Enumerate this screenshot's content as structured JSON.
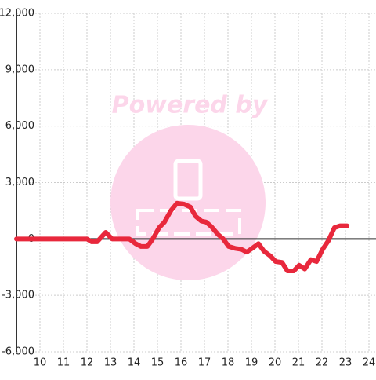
{
  "chart_data": {
    "type": "line",
    "watermark": "Powered by",
    "x": [
      9,
      12,
      12.2,
      12.43,
      12.8,
      13.07,
      13.8,
      14.07,
      14.3,
      14.57,
      14.8,
      15.07,
      15.3,
      15.57,
      15.83,
      16.13,
      16.4,
      16.63,
      16.87,
      17.07,
      17.3,
      17.57,
      17.8,
      18.03,
      18.3,
      18.57,
      18.8,
      19.03,
      19.3,
      19.53,
      19.8,
      20.03,
      20.3,
      20.53,
      20.8,
      21.03,
      21.27,
      21.53,
      21.77,
      22.03,
      22.27,
      22.53,
      22.77,
      23.07
    ],
    "series": [
      {
        "color": "#e8283c",
        "values": [
          0,
          0,
          -150,
          -150,
          350,
          0,
          0,
          -250,
          -400,
          -400,
          0,
          600,
          900,
          1500,
          1900,
          1850,
          1700,
          1200,
          950,
          900,
          650,
          250,
          0,
          -400,
          -500,
          -550,
          -700,
          -500,
          -250,
          -650,
          -900,
          -1200,
          -1250,
          -1700,
          -1700,
          -1400,
          -1600,
          -1100,
          -1200,
          -550,
          -100,
          600,
          700,
          700
        ]
      }
    ],
    "xlim": [
      9,
      24.3
    ],
    "xticks": [
      10,
      11,
      12,
      13,
      14,
      15,
      16,
      17,
      18,
      19,
      20,
      21,
      22,
      23,
      24
    ],
    "ylim": [
      -6000,
      12000
    ],
    "yticks": [
      {
        "value": -6000,
        "label": "-6,000"
      },
      {
        "value": -3000,
        "label": "-3,000"
      },
      0,
      {
        "value": 3000,
        "label": "3,000"
      },
      {
        "value": 6000,
        "label": "6,000"
      },
      {
        "value": 9000,
        "label": "9,000"
      },
      {
        "value": 12000,
        "label": "12,000"
      }
    ],
    "grid": true
  }
}
